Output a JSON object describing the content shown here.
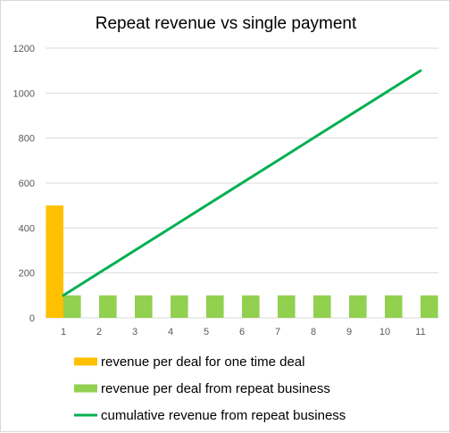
{
  "chart_data": {
    "type": "bar",
    "title": "Repeat revenue vs single payment",
    "xlabel": "",
    "ylabel": "",
    "categories": [
      "1",
      "2",
      "3",
      "4",
      "5",
      "6",
      "7",
      "8",
      "9",
      "10",
      "11"
    ],
    "ylim": [
      0,
      1200
    ],
    "yticks": [
      "0",
      "200",
      "400",
      "600",
      "800",
      "1000",
      "1200"
    ],
    "grid": true,
    "legend_position": "bottom",
    "series": [
      {
        "name": "revenue per deal for one time deal",
        "type": "bar",
        "color": "#ffc000",
        "values": [
          500,
          0,
          0,
          0,
          0,
          0,
          0,
          0,
          0,
          0,
          0
        ]
      },
      {
        "name": "revenue per deal from repeat business",
        "type": "bar",
        "color": "#92d050",
        "values": [
          100,
          100,
          100,
          100,
          100,
          100,
          100,
          100,
          100,
          100,
          100
        ]
      },
      {
        "name": "cumulative revenue from repeat business",
        "type": "line",
        "color": "#00b050",
        "values": [
          100,
          200,
          300,
          400,
          500,
          600,
          700,
          800,
          900,
          1000,
          1100
        ]
      }
    ]
  }
}
